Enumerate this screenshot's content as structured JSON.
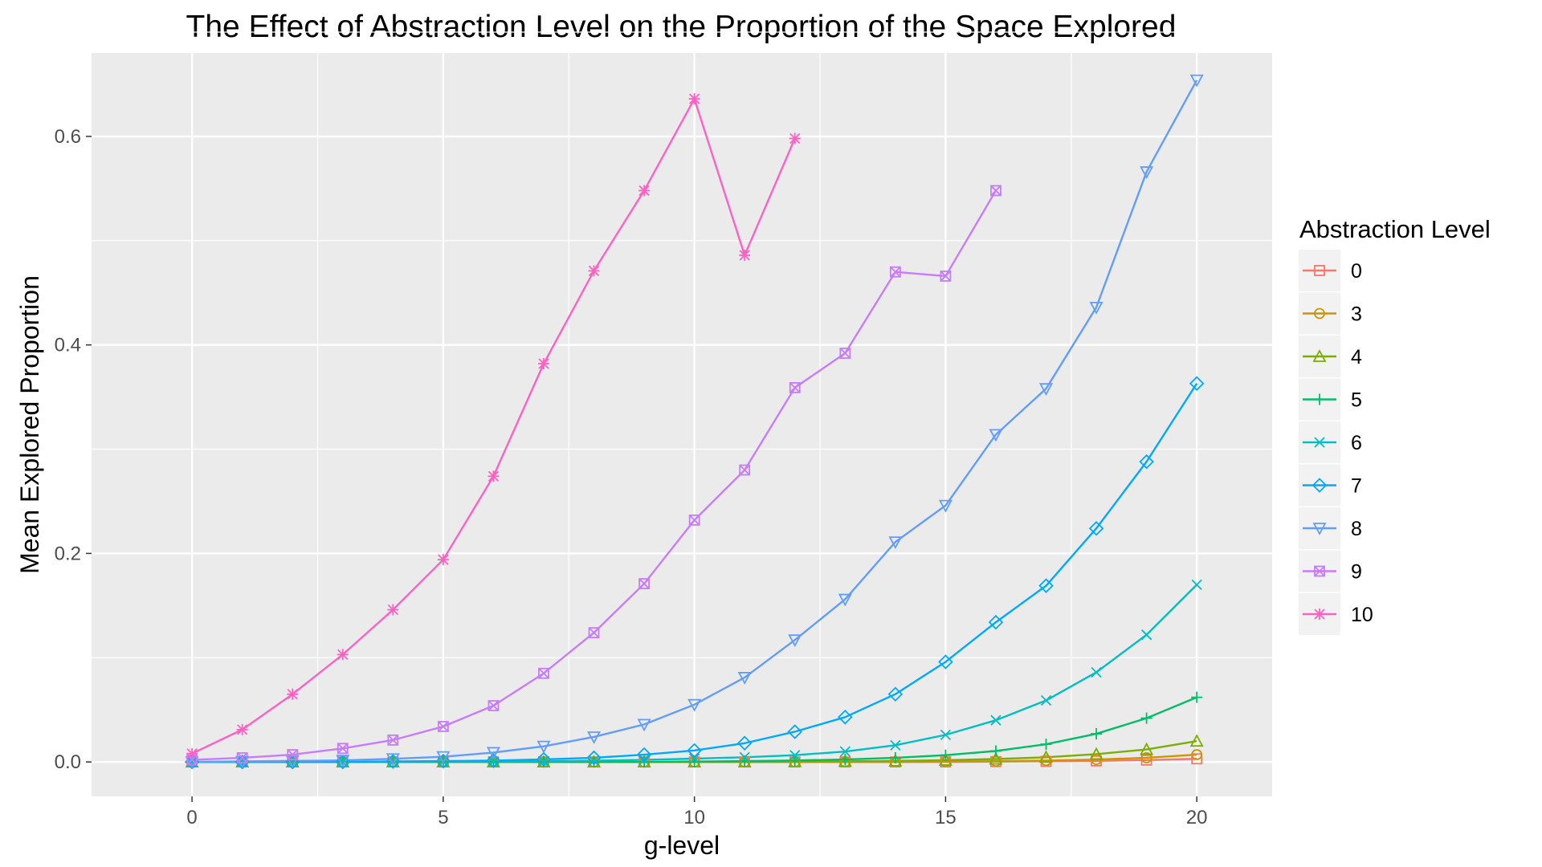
{
  "chart_data": {
    "type": "line",
    "title": "The Effect of Abstraction Level on the Proportion of the Space Explored",
    "xlabel": "g-level",
    "ylabel": "Mean Explored Proportion",
    "xlim": [
      -2,
      21.5
    ],
    "ylim": [
      -0.033,
      0.68
    ],
    "xticks": [
      0,
      5,
      10,
      15,
      20
    ],
    "xtick_labels": [
      "0",
      "5",
      "10",
      "15",
      "20"
    ],
    "yticks": [
      0.0,
      0.2,
      0.4,
      0.6
    ],
    "ytick_labels": [
      "0.0",
      "0.2",
      "0.4",
      "0.6"
    ],
    "grid": true,
    "legend": {
      "title": "Abstraction Level",
      "position": "right"
    },
    "series": [
      {
        "name": "0",
        "color": "#F8766D",
        "marker": "square-open",
        "x": [
          0,
          1,
          2,
          3,
          4,
          5,
          6,
          7,
          8,
          9,
          10,
          11,
          12,
          13,
          14,
          15,
          16,
          17,
          18,
          19,
          20
        ],
        "values": [
          0,
          0,
          0,
          0,
          0,
          0,
          0,
          0,
          0,
          0,
          0,
          0,
          0,
          0,
          0,
          0,
          0.0003,
          0.0006,
          0.001,
          0.0018,
          0.003
        ]
      },
      {
        "name": "3",
        "color": "#CD9600",
        "marker": "circle-open",
        "x": [
          0,
          1,
          2,
          3,
          4,
          5,
          6,
          7,
          8,
          9,
          10,
          11,
          12,
          13,
          14,
          15,
          16,
          17,
          18,
          19,
          20
        ],
        "values": [
          0,
          0,
          0,
          0,
          0,
          0,
          0,
          0,
          0,
          0,
          0,
          0,
          0,
          0,
          0,
          0.0003,
          0.0007,
          0.0013,
          0.0023,
          0.004,
          0.007
        ]
      },
      {
        "name": "4",
        "color": "#7CAE00",
        "marker": "triangle-open",
        "x": [
          0,
          1,
          2,
          3,
          4,
          5,
          6,
          7,
          8,
          9,
          10,
          11,
          12,
          13,
          14,
          15,
          16,
          17,
          18,
          19,
          20
        ],
        "values": [
          0,
          0,
          0,
          0,
          0,
          0,
          0,
          0,
          0,
          0,
          0,
          0,
          0.0003,
          0.0006,
          0.001,
          0.0017,
          0.0028,
          0.0045,
          0.0075,
          0.012,
          0.02
        ]
      },
      {
        "name": "5",
        "color": "#00BE67",
        "marker": "plus",
        "x": [
          0,
          1,
          2,
          3,
          4,
          5,
          6,
          7,
          8,
          9,
          10,
          11,
          12,
          13,
          14,
          15,
          16,
          17,
          18,
          19,
          20
        ],
        "values": [
          0,
          0,
          0,
          0,
          0,
          0,
          0,
          0,
          0,
          0,
          0.0004,
          0.0008,
          0.0014,
          0.0024,
          0.004,
          0.0065,
          0.0105,
          0.017,
          0.027,
          0.042,
          0.062
        ]
      },
      {
        "name": "6",
        "color": "#00BFC4",
        "marker": "x",
        "x": [
          0,
          1,
          2,
          3,
          4,
          5,
          6,
          7,
          8,
          9,
          10,
          11,
          12,
          13,
          14,
          15,
          16,
          17,
          18,
          19,
          20
        ],
        "values": [
          0,
          0,
          0,
          0,
          0,
          0.0002,
          0.0004,
          0.0007,
          0.0012,
          0.002,
          0.0032,
          0.0045,
          0.0065,
          0.01,
          0.016,
          0.026,
          0.04,
          0.059,
          0.086,
          0.122,
          0.17
        ]
      },
      {
        "name": "7",
        "color": "#00A9FF",
        "marker": "diamond-open",
        "x": [
          0,
          1,
          2,
          3,
          4,
          5,
          6,
          7,
          8,
          9,
          10,
          11,
          12,
          13,
          14,
          15,
          16,
          17,
          18,
          19,
          20
        ],
        "values": [
          0,
          0,
          0,
          0,
          0.0005,
          0.0008,
          0.0013,
          0.0025,
          0.004,
          0.007,
          0.011,
          0.018,
          0.029,
          0.043,
          0.065,
          0.096,
          0.134,
          0.169,
          0.224,
          0.288,
          0.363
        ]
      },
      {
        "name": "8",
        "color": "#619CFF",
        "marker": "triangle-down-open",
        "x": [
          0,
          1,
          2,
          3,
          4,
          5,
          6,
          7,
          8,
          9,
          10,
          11,
          12,
          13,
          14,
          15,
          16,
          17,
          18,
          19,
          20
        ],
        "values": [
          0,
          0.0005,
          0.001,
          0.0015,
          0.003,
          0.005,
          0.009,
          0.015,
          0.024,
          0.036,
          0.055,
          0.081,
          0.117,
          0.156,
          0.211,
          0.246,
          0.314,
          0.358,
          0.436,
          0.566,
          0.654
        ]
      },
      {
        "name": "9",
        "color": "#C77CFF",
        "marker": "square-x",
        "x": [
          0,
          1,
          2,
          3,
          4,
          5,
          6,
          7,
          8,
          9,
          10,
          11,
          12,
          13,
          14,
          15,
          16
        ],
        "values": [
          0.002,
          0.004,
          0.007,
          0.013,
          0.021,
          0.034,
          0.054,
          0.085,
          0.124,
          0.171,
          0.232,
          0.28,
          0.359,
          0.392,
          0.47,
          0.466,
          0.548
        ]
      },
      {
        "name": "10",
        "color": "#FF61C3",
        "marker": "asterisk",
        "x": [
          0,
          1,
          2,
          3,
          4,
          5,
          6,
          7,
          8,
          9,
          10,
          11,
          12
        ],
        "values": [
          0.008,
          0.031,
          0.065,
          0.103,
          0.146,
          0.194,
          0.274,
          0.382,
          0.471,
          0.548,
          0.636,
          0.486,
          0.598
        ]
      }
    ]
  }
}
